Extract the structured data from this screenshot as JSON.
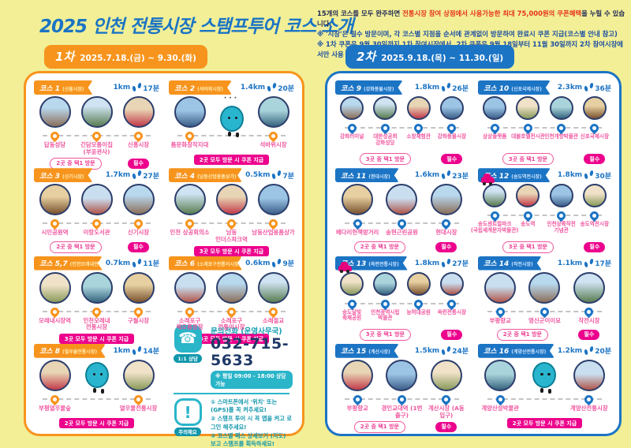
{
  "header": {
    "title": "2025 인천 전통시장 스탬프투어 코스 소개",
    "notice1_pre": "15개의 코스를 모두 완주하면 ",
    "notice1_highlight": "전통시장 참여 상점에서 사용가능한 최대 75,000원의 쿠폰혜택",
    "notice1_post": "을 누릴 수 있습니다.",
    "notice2": "※ '시장'은 필수 방문이며, 각 코스별 지점을 순서에 관계없이 방문하여 완료시 쿠폰 지급(코스별 안내 참고)",
    "notice3": "※ 1차 쿠폰은 9월 30일까지 1차 참여시장에서, 2차 쿠폰은 9월 18일부터 11월 30일까지 2차 참여시장에서만 사용 가능"
  },
  "palette": {
    "background": "#f2ef97",
    "title_blue": "#1b74c4",
    "accent_orange": "#f7941d",
    "accent_blue": "#1c74c4",
    "magenta": "#ec008c",
    "stop_name_pink": "#f0559e",
    "teal": "#2ab5c9",
    "notice_red": "#e8341c",
    "notice_navy": "#222a55",
    "notice_blue": "#1c4fa3"
  },
  "panels": [
    {
      "cls": "first",
      "round_label": "1차",
      "period": "2025.7.18.(금) ~ 9.30.(화)",
      "accent": "#f7941d",
      "contact": true,
      "courses": [
        {
          "num": "코스 1",
          "sub": "(신흥시장)",
          "dist": "1km",
          "time": "17분",
          "stops": [
            {
              "name": "답동성당"
            },
            {
              "name": "긴담모퉁이집 (부윤관사)"
            },
            {
              "name": "신흥시장"
            }
          ],
          "badges": {
            "choice": "2곳 중 택1 방문",
            "required": "필수"
          }
        },
        {
          "num": "코스 2",
          "sub": "(석바위시장)",
          "dist": "1.4km",
          "time": "20분",
          "stops": [
            {
              "name": "틈문화창작지대"
            },
            {
              "mascot": true,
              "dots": "···"
            },
            {
              "name": "석바위시장"
            }
          ],
          "badges": {
            "all": "2곳 모두 방문 시 쿠폰 지급"
          }
        },
        {
          "num": "코스 3",
          "sub": "(신기시장)",
          "dist": "1.7km",
          "time": "27분",
          "stops": [
            {
              "name": "시민공원역"
            },
            {
              "name": "이랑도서관"
            },
            {
              "name": "신기시장"
            }
          ],
          "badges": {
            "choice": "2곳 중 택1 방문",
            "required": "필수"
          }
        },
        {
          "num": "코스 4",
          "sub": "(남동산업용품상가)",
          "dist": "0.5km",
          "time": "7분",
          "stops": [
            {
              "name": "인천 상공회의소"
            },
            {
              "name": "남동 인더스파크역"
            },
            {
              "name": "남동산업용품상가"
            }
          ],
          "badges": {
            "all": "3곳 모두 방문 시 쿠폰 지급"
          }
        },
        {
          "num": "코스 5,7",
          "sub": "(인천모래내전통, 구월시장)",
          "dist": "0.7km",
          "time": "11분",
          "stops": [
            {
              "name": "모래내시장역"
            },
            {
              "name": "인천모래내 전통시장"
            },
            {
              "name": "구월시장"
            }
          ],
          "badges": {
            "all": "3곳 모두 방문 시 쿠폰 지급"
          }
        },
        {
          "num": "코스 6",
          "sub": "(소래포구전통어시장)",
          "dist": "0.6km",
          "time": "9분",
          "stops": [
            {
              "name": "소래포구 해오름광장"
            },
            {
              "name": "소래포구 전통어시장"
            },
            {
              "name": "소래철교"
            }
          ],
          "badges": {
            "all": "3곳 모두 방문 시 쿠폰 지급"
          }
        },
        {
          "num": "코스 8",
          "sub": "(열우물전통시장)",
          "dist": "1km",
          "time": "14분",
          "stops": [
            {
              "name": "부평열우물숲"
            },
            {
              "mascot": true
            },
            {
              "name": "열우물전통시장"
            }
          ],
          "badges": {
            "all": "2곳 모두 방문 시 쿠폰 지급"
          }
        }
      ]
    },
    {
      "cls": "second",
      "round_label": "2차",
      "period": "2025.9.18.(목) ~ 11.30.(일)",
      "accent": "#1c74c4",
      "contact": false,
      "courses": [
        {
          "num": "코스 9",
          "sub": "(강화풍물시장)",
          "dist": "1.8km",
          "time": "26분",
          "stops": [
            {
              "name": "강화터미널"
            },
            {
              "name": "대한성공회 강화성당"
            },
            {
              "name": "소창체험관"
            },
            {
              "name": "강화풍물시장"
            }
          ],
          "badges": {
            "choice": "3곳 중 택1 방문",
            "required": "필수"
          }
        },
        {
          "num": "코스 10",
          "sub": "(신포국제시장)",
          "dist": "2.3km",
          "time": "36분",
          "stops": [
            {
              "name": "상상플랫폼"
            },
            {
              "name": "대불호텔전시관"
            },
            {
              "name": "인천개항박물관"
            },
            {
              "name": "신포국제시장"
            }
          ],
          "badges": {
            "choice": "3곳 중 택1 방문",
            "required": "필수"
          }
        },
        {
          "num": "코스 11",
          "sub": "(현대시장)",
          "dist": "1.6km",
          "time": "23분",
          "stops": [
            {
              "name": "배다리헌책방거리"
            },
            {
              "name": "송현근린공원"
            },
            {
              "name": "현대시장"
            }
          ],
          "badges": {
            "choice": "2곳 중 택1 방문",
            "required": "필수"
          }
        },
        {
          "num": "코스 12",
          "sub": "(송도역전시장)",
          "dist": "1.8km",
          "time": "30분",
          "car": true,
          "stops": [
            {
              "name": "송도센트럴파크 (국립세계문자박물관)"
            },
            {
              "name": "송도역"
            },
            {
              "name": "인천상륙작전 기념관"
            },
            {
              "name": "송도역전시장"
            }
          ],
          "badges": {
            "choice": "3곳 중 택1 방문",
            "required": "필수"
          }
        },
        {
          "num": "코스 13",
          "sub": "(옥련전통시장)",
          "dist": "1.8km",
          "time": "27분",
          "car": true,
          "stops": [
            {
              "name": "송도달빛 축제공원"
            },
            {
              "name": "인천광역시립 박물관"
            },
            {
              "name": "능허대공원"
            },
            {
              "name": "옥련전통시장"
            }
          ],
          "badges": {
            "choice": "3곳 중 택1 방문",
            "required": "필수"
          }
        },
        {
          "num": "코스 14",
          "sub": "(작전시장)",
          "dist": "1.1km",
          "time": "17분",
          "stops": [
            {
              "name": "부평향교"
            },
            {
              "name": "영신군이이묘"
            },
            {
              "name": "작전시장"
            }
          ],
          "badges": {
            "choice": "2곳 중 택1 방문",
            "required": "필수"
          }
        },
        {
          "num": "코스 15",
          "sub": "(계산시장)",
          "dist": "1.5km",
          "time": "24분",
          "stops": [
            {
              "name": "부평향교"
            },
            {
              "name": "경인교대역 (1번 출구)"
            },
            {
              "name": "계산시장 (A동 입구)"
            }
          ],
          "badges": {
            "choice": "2곳 중 택1 방문",
            "required": "필수"
          }
        },
        {
          "num": "코스 16",
          "sub": "(계양산전통시장)",
          "dist": "1.2km",
          "time": "20분",
          "stops": [
            {
              "name": "계양산성박물관"
            },
            {
              "mascot": true
            },
            {
              "name": "계양산전통시장"
            }
          ],
          "badges": {
            "all": "2곳 모두 방문 시 쿠폰 지급"
          }
        }
      ]
    }
  ],
  "contact": {
    "title": "문의전화 (운영사무국)",
    "phone": "032-715-5633",
    "hours": "※ 평일 09:00 - 18:00 상담가능",
    "phone_badge": "1:1 상담",
    "caution_badge": "주의해요",
    "phone_icon": "☎",
    "caution_icon": "!",
    "instructions": [
      "① 스마트폰에서 '위치' 또는 (GPS)를 꼭 켜주세요!",
      "② 스탬프 투어 시 꼭 앱을 켜고 로그인 해주세요!",
      "③ 코스별 패스 상세보기 (지도) 보고 스탬프를 획득하세요!"
    ]
  }
}
